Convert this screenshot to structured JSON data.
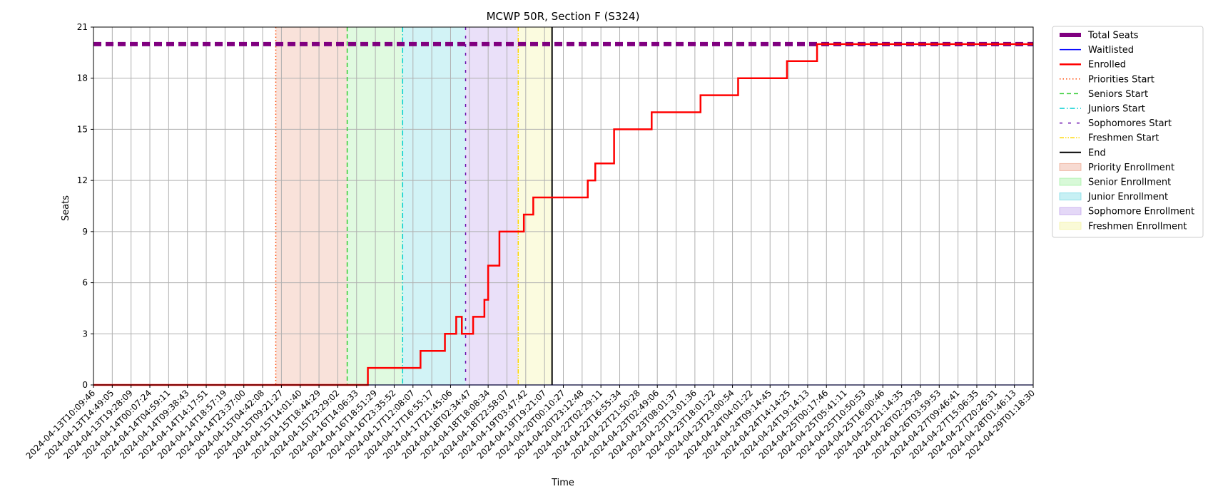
{
  "chart_data": {
    "type": "line",
    "title": "MCWP 50R, Section F (S324)",
    "xlabel": "Time",
    "ylabel": "Seats",
    "ylim": [
      0,
      21
    ],
    "yticks": [
      0,
      3,
      6,
      9,
      12,
      15,
      18,
      21
    ],
    "grid": true,
    "legend_position": "outside-top-right",
    "x_ticks": [
      "2024-04-13T10:09:46",
      "2024-04-13T14:49:05",
      "2024-04-13T19:28:09",
      "2024-04-14T00:07:24",
      "2024-04-14T04:59:11",
      "2024-04-14T09:38:43",
      "2024-04-14T14:17:51",
      "2024-04-14T18:57:19",
      "2024-04-14T23:37:00",
      "2024-04-15T04:42:08",
      "2024-04-15T09:21:27",
      "2024-04-15T14:01:40",
      "2024-04-15T18:44:29",
      "2024-04-15T23:29:02",
      "2024-04-16T14:06:33",
      "2024-04-16T18:51:29",
      "2024-04-16T23:35:52",
      "2024-04-17T12:08:07",
      "2024-04-17T16:55:17",
      "2024-04-17T21:45:06",
      "2024-04-18T02:34:47",
      "2024-04-18T18:08:34",
      "2024-04-18T22:58:07",
      "2024-04-19T03:47:42",
      "2024-04-19T19:21:07",
      "2024-04-20T00:10:27",
      "2024-04-20T23:12:48",
      "2024-04-22T02:29:11",
      "2024-04-22T16:55:34",
      "2024-04-22T21:50:28",
      "2024-04-23T02:49:06",
      "2024-04-23T08:01:37",
      "2024-04-23T13:01:36",
      "2024-04-23T18:01:22",
      "2024-04-23T23:00:54",
      "2024-04-24T04:01:22",
      "2024-04-24T09:14:45",
      "2024-04-24T14:14:25",
      "2024-04-24T19:14:13",
      "2024-04-25T00:17:46",
      "2024-04-25T05:41:11",
      "2024-04-25T10:50:53",
      "2024-04-25T16:00:46",
      "2024-04-25T21:14:35",
      "2024-04-26T02:29:28",
      "2024-04-26T03:59:53",
      "2024-04-27T09:46:41",
      "2024-04-27T15:06:35",
      "2024-04-27T20:26:31",
      "2024-04-28T01:46:13",
      "2024-04-29T01:18:30"
    ],
    "series": [
      {
        "name": "Total Seats",
        "color": "#800080",
        "style": "dashed-thick",
        "points": [
          [
            0,
            20
          ],
          [
            50,
            20
          ]
        ]
      },
      {
        "name": "Waitlisted",
        "color": "#0000ff",
        "style": "solid",
        "points": [
          [
            0,
            0
          ],
          [
            50,
            0
          ]
        ]
      },
      {
        "name": "Enrolled",
        "color": "#ff0000",
        "style": "step",
        "points": [
          [
            0,
            0
          ],
          [
            14.6,
            0
          ],
          [
            14.6,
            1
          ],
          [
            17.4,
            1
          ],
          [
            17.4,
            2
          ],
          [
            18.7,
            2
          ],
          [
            18.7,
            3
          ],
          [
            19.3,
            3
          ],
          [
            19.3,
            4
          ],
          [
            19.6,
            4
          ],
          [
            19.6,
            3
          ],
          [
            20.2,
            3
          ],
          [
            20.2,
            4
          ],
          [
            20.8,
            4
          ],
          [
            20.8,
            5
          ],
          [
            21.0,
            5
          ],
          [
            21.0,
            7
          ],
          [
            21.6,
            7
          ],
          [
            21.6,
            9
          ],
          [
            22.9,
            9
          ],
          [
            22.9,
            10
          ],
          [
            23.4,
            10
          ],
          [
            23.4,
            11
          ],
          [
            26.3,
            11
          ],
          [
            26.3,
            12
          ],
          [
            26.7,
            12
          ],
          [
            26.7,
            13
          ],
          [
            27.7,
            13
          ],
          [
            27.7,
            15
          ],
          [
            29.7,
            15
          ],
          [
            29.7,
            16
          ],
          [
            32.3,
            16
          ],
          [
            32.3,
            17
          ],
          [
            34.3,
            17
          ],
          [
            34.3,
            18
          ],
          [
            36.9,
            18
          ],
          [
            36.9,
            19
          ],
          [
            38.5,
            19
          ],
          [
            38.5,
            20
          ],
          [
            50,
            20
          ]
        ]
      }
    ],
    "markers": [
      {
        "name": "Priorities Start",
        "x": 9.7,
        "color": "#ff4500",
        "style": "dotted"
      },
      {
        "name": "Seniors Start",
        "x": 13.5,
        "color": "#32cd32",
        "style": "dashed"
      },
      {
        "name": "Juniors Start",
        "x": 16.45,
        "color": "#00ced1",
        "style": "dashdot"
      },
      {
        "name": "Sophomores Start",
        "x": 19.8,
        "color": "#6a0dad",
        "style": "loosedash"
      },
      {
        "name": "Freshmen Start",
        "x": 22.6,
        "color": "#ffd700",
        "style": "dashdotdot"
      },
      {
        "name": "End",
        "x": 24.4,
        "color": "#000000",
        "style": "solid"
      }
    ],
    "regions": [
      {
        "name": "Priority Enrollment",
        "from": 9.7,
        "to": 13.5,
        "color": "#e9967a"
      },
      {
        "name": "Senior Enrollment",
        "from": 13.5,
        "to": 16.45,
        "color": "#90ee90"
      },
      {
        "name": "Junior Enrollment",
        "from": 16.45,
        "to": 19.8,
        "color": "#5fd3e0"
      },
      {
        "name": "Sophomore Enrollment",
        "from": 19.8,
        "to": 22.6,
        "color": "#b28ee8"
      },
      {
        "name": "Freshmen Enrollment",
        "from": 22.6,
        "to": 24.4,
        "color": "#f0f08c"
      }
    ],
    "legend": [
      "Total Seats",
      "Waitlisted",
      "Enrolled",
      "Priorities Start",
      "Seniors Start",
      "Juniors Start",
      "Sophomores Start",
      "Freshmen Start",
      "End",
      "Priority Enrollment",
      "Senior Enrollment",
      "Junior Enrollment",
      "Sophomore Enrollment",
      "Freshmen Enrollment"
    ]
  }
}
